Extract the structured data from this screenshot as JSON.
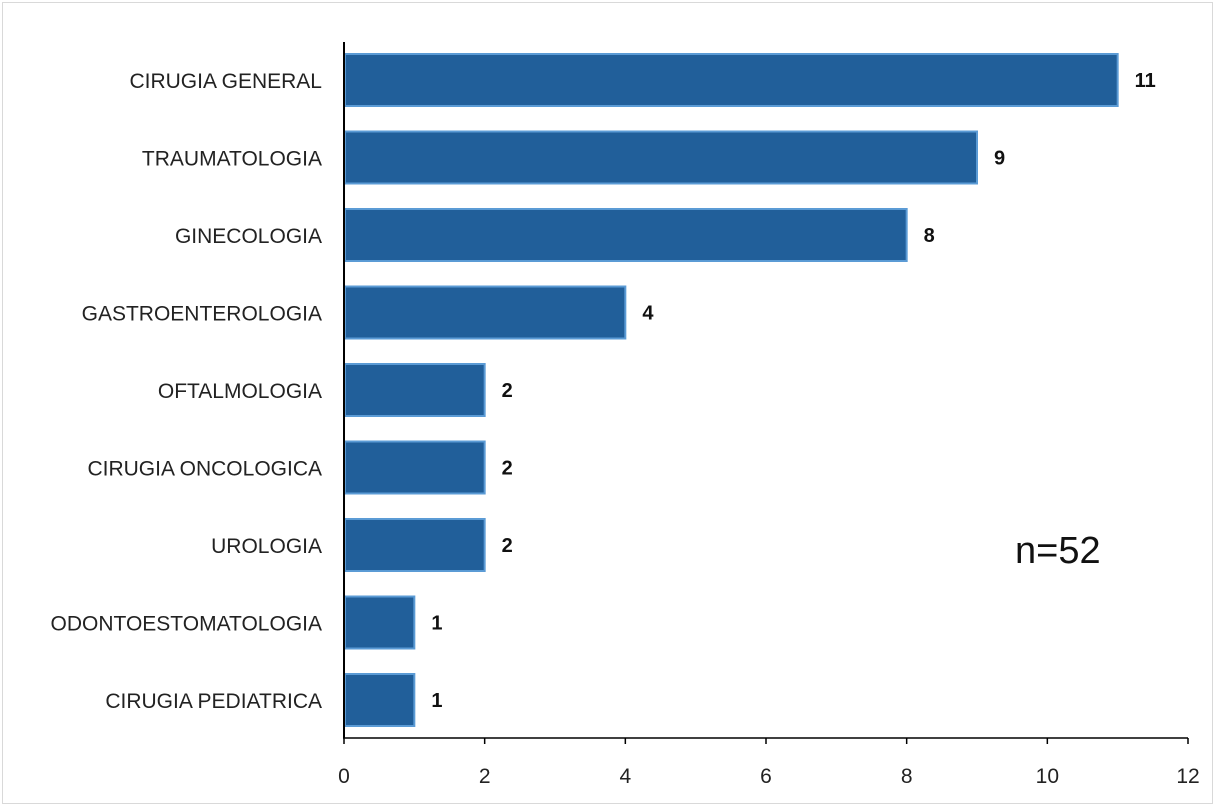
{
  "chart_data": {
    "type": "bar",
    "orientation": "horizontal",
    "categories": [
      "CIRUGIA GENERAL",
      "TRAUMATOLOGIA",
      "GINECOLOGIA",
      "GASTROENTEROLOGIA",
      "OFTALMOLOGIA",
      "CIRUGIA ONCOLOGICA",
      "UROLOGIA",
      "ODONTOESTOMATOLOGIA",
      "CIRUGIA PEDIATRICA"
    ],
    "values": [
      11,
      9,
      8,
      4,
      2,
      2,
      2,
      1,
      1
    ],
    "data_labels": [
      "11",
      "9",
      "8",
      "4",
      "2",
      "2",
      "2",
      "1",
      "1"
    ],
    "xlim": [
      0,
      12
    ],
    "xticks": [
      0,
      2,
      4,
      6,
      8,
      10,
      12
    ],
    "xtick_labels": [
      "0",
      "2",
      "4",
      "6",
      "8",
      "10",
      "12"
    ],
    "title": "",
    "xlabel": "",
    "ylabel": "",
    "annotation": "n=52",
    "grid": false,
    "legend": "none",
    "colors": {
      "bar_fill": "#215f9a",
      "bar_stroke": "#5b9bd5",
      "axis": "#000000"
    }
  }
}
